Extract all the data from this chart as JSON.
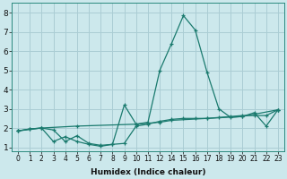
{
  "xlabel": "Humidex (Indice chaleur)",
  "bg_color": "#cce8ec",
  "grid_color": "#aacdd4",
  "line_color": "#1a7a6e",
  "xlim": [
    -0.5,
    22.5
  ],
  "ylim": [
    0.8,
    8.5
  ],
  "xtick_labels": [
    "0",
    "1",
    "2",
    "3",
    "4",
    "5",
    "6",
    "7",
    "8",
    "9",
    "10",
    "11",
    "12",
    "14",
    "15",
    "16",
    "17",
    "18",
    "19",
    "20",
    "21",
    "22",
    "23"
  ],
  "yticks": [
    1,
    2,
    3,
    4,
    5,
    6,
    7,
    8
  ],
  "series1": [
    [
      0,
      1.85
    ],
    [
      1,
      1.95
    ],
    [
      2,
      2.0
    ],
    [
      3,
      1.9
    ],
    [
      4,
      1.3
    ],
    [
      5,
      1.6
    ],
    [
      6,
      1.2
    ],
    [
      7,
      1.1
    ],
    [
      8,
      1.15
    ],
    [
      9,
      3.2
    ],
    [
      10,
      2.2
    ],
    [
      11,
      2.3
    ],
    [
      12,
      5.0
    ],
    [
      13,
      6.4
    ],
    [
      14,
      7.85
    ],
    [
      15,
      7.1
    ],
    [
      16,
      4.9
    ],
    [
      17,
      3.0
    ],
    [
      18,
      2.55
    ],
    [
      19,
      2.6
    ],
    [
      20,
      2.8
    ],
    [
      21,
      2.1
    ],
    [
      22,
      2.95
    ]
  ],
  "series2": [
    [
      0,
      1.85
    ],
    [
      1,
      1.95
    ],
    [
      2,
      2.0
    ],
    [
      3,
      1.3
    ],
    [
      4,
      1.55
    ],
    [
      5,
      1.3
    ],
    [
      6,
      1.15
    ],
    [
      7,
      1.05
    ],
    [
      8,
      1.15
    ],
    [
      9,
      1.2
    ],
    [
      10,
      2.1
    ],
    [
      11,
      2.2
    ],
    [
      12,
      2.35
    ],
    [
      13,
      2.45
    ],
    [
      14,
      2.5
    ],
    [
      15,
      2.5
    ],
    [
      16,
      2.5
    ],
    [
      17,
      2.55
    ],
    [
      18,
      2.6
    ],
    [
      19,
      2.65
    ],
    [
      20,
      2.65
    ],
    [
      21,
      2.65
    ],
    [
      22,
      2.95
    ]
  ],
  "series3": [
    [
      0,
      1.85
    ],
    [
      2,
      2.0
    ],
    [
      5,
      2.1
    ],
    [
      10,
      2.2
    ],
    [
      12,
      2.3
    ],
    [
      13,
      2.4
    ],
    [
      16,
      2.5
    ],
    [
      19,
      2.6
    ],
    [
      22,
      2.95
    ]
  ]
}
